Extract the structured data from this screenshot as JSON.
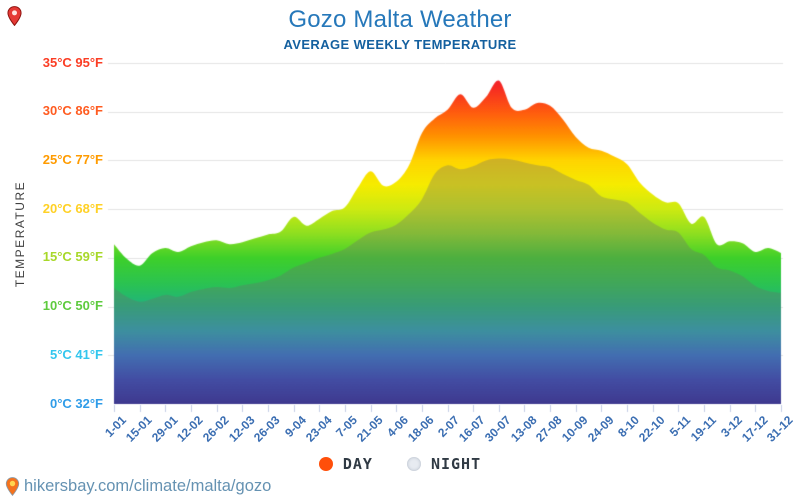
{
  "header": {
    "title": "Gozo Malta Weather",
    "subtitle": "AVERAGE WEEKLY TEMPERATURE"
  },
  "y_axis": {
    "title": "TEMPERATURE",
    "ticks": [
      {
        "label": "35°C 95°F",
        "c": 35,
        "color": "#fb3d24"
      },
      {
        "label": "30°C 86°F",
        "c": 30,
        "color": "#ff5c21"
      },
      {
        "label": "25°C 77°F",
        "c": 25,
        "color": "#ff9b00"
      },
      {
        "label": "20°C 68°F",
        "c": 20,
        "color": "#ffd126"
      },
      {
        "label": "15°C 59°F",
        "c": 15,
        "color": "#a8d829"
      },
      {
        "label": "10°C 50°F",
        "c": 10,
        "color": "#5ecb3e"
      },
      {
        "label": "5°C 41°F",
        "c": 5,
        "color": "#33c6ee"
      },
      {
        "label": "0°C 32°F",
        "c": 0,
        "color": "#2f9ce8"
      }
    ]
  },
  "x_axis": {
    "labels": [
      "1-01",
      "15-01",
      "29-01",
      "12-02",
      "26-02",
      "12-03",
      "26-03",
      "9-04",
      "23-04",
      "7-05",
      "21-05",
      "4-06",
      "18-06",
      "2-07",
      "16-07",
      "30-07",
      "13-08",
      "27-08",
      "10-09",
      "24-09",
      "8-10",
      "22-10",
      "5-11",
      "19-11",
      "3-12",
      "17-12",
      "31-12"
    ]
  },
  "legend": {
    "day_label": "DAY",
    "night_label": "NIGHT",
    "day_color": "#ff4f0a",
    "night_color": "#e7ebf1"
  },
  "footer": {
    "url": "hikersbay.com/climate/malta/gozo"
  },
  "chart_data": {
    "type": "area",
    "title": "Gozo Malta Weather",
    "subtitle": "AVERAGE WEEKLY TEMPERATURE",
    "unit": "°C",
    "ylim": [
      0,
      35
    ],
    "weeks_per_tick": 2,
    "x_tick_labels": [
      "1-01",
      "15-01",
      "29-01",
      "12-02",
      "26-02",
      "12-03",
      "26-03",
      "9-04",
      "23-04",
      "7-05",
      "21-05",
      "4-06",
      "18-06",
      "2-07",
      "16-07",
      "30-07",
      "13-08",
      "27-08",
      "10-09",
      "24-09",
      "8-10",
      "22-10",
      "5-11",
      "19-11",
      "3-12",
      "17-12",
      "31-12"
    ],
    "series": [
      {
        "name": "DAY",
        "values": [
          16.4,
          14.9,
          14.2,
          15.5,
          16.0,
          15.6,
          16.2,
          16.6,
          16.8,
          16.4,
          16.6,
          17.0,
          17.4,
          17.7,
          19.2,
          18.3,
          19.0,
          19.8,
          20.2,
          22.2,
          23.9,
          22.4,
          22.8,
          24.5,
          27.8,
          29.3,
          30.2,
          31.8,
          30.4,
          31.5,
          33.2,
          30.4,
          30.2,
          30.9,
          30.6,
          29.2,
          27.4,
          26.3,
          26.0,
          25.4,
          24.6,
          22.7,
          21.5,
          20.7,
          20.6,
          18.5,
          19.2,
          16.4,
          16.7,
          16.5,
          15.6,
          16.0,
          15.5
        ]
      },
      {
        "name": "NIGHT",
        "values": [
          11.9,
          11.0,
          10.5,
          10.8,
          11.2,
          11.0,
          11.5,
          11.8,
          12.0,
          11.9,
          12.2,
          12.4,
          12.7,
          13.2,
          14.0,
          14.5,
          15.0,
          15.4,
          15.9,
          16.8,
          17.6,
          17.9,
          18.4,
          19.5,
          21.0,
          23.6,
          24.5,
          24.1,
          24.4,
          25.0,
          25.2,
          25.1,
          24.8,
          24.5,
          24.3,
          23.6,
          23.0,
          22.5,
          21.3,
          21.0,
          20.7,
          19.6,
          18.6,
          17.9,
          17.6,
          15.9,
          15.3,
          14.0,
          13.7,
          13.1,
          12.1,
          11.6,
          11.4
        ]
      }
    ],
    "gradient_stops": [
      {
        "t": 0,
        "color": "#2820a0"
      },
      {
        "t": 2.5,
        "color": "#2e3ebe"
      },
      {
        "t": 5,
        "color": "#2f6fd2"
      },
      {
        "t": 7.5,
        "color": "#26a0b8"
      },
      {
        "t": 10,
        "color": "#1fb37e"
      },
      {
        "t": 12.5,
        "color": "#2cc44f"
      },
      {
        "t": 15,
        "color": "#3ed02a"
      },
      {
        "t": 17.5,
        "color": "#8fdf20"
      },
      {
        "t": 20,
        "color": "#cdea12"
      },
      {
        "t": 22.5,
        "color": "#f6ec00"
      },
      {
        "t": 25,
        "color": "#ffd400"
      },
      {
        "t": 27.5,
        "color": "#ff9100"
      },
      {
        "t": 30,
        "color": "#ff5a0f"
      },
      {
        "t": 32.5,
        "color": "#f62a23"
      },
      {
        "t": 35,
        "color": "#e91145"
      }
    ],
    "night_overlay": "rgba(110,110,110,0.33)",
    "grid_color": "#e3e3e3",
    "axis_tick_color": "#c3cce6",
    "legend_position": "bottom",
    "grid": true
  }
}
